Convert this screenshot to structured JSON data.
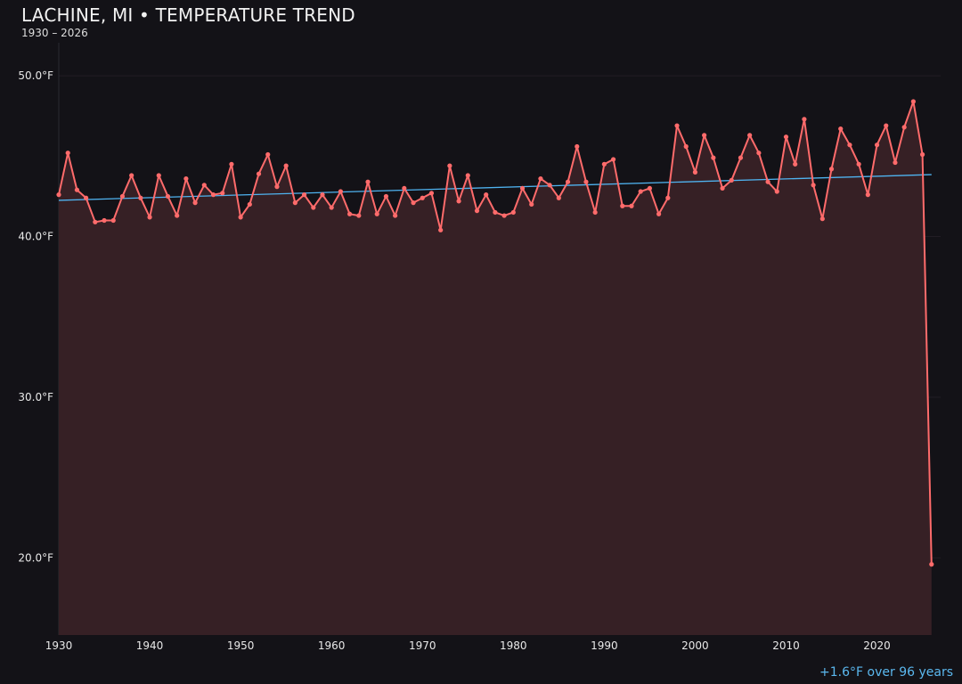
{
  "chart_data": {
    "type": "line",
    "title": "LACHINE, MI • TEMPERATURE TREND",
    "subtitle": "1930 – 2026",
    "annotation": "+1.6°F over 96 years",
    "xlabel": "",
    "ylabel": "",
    "xlim": [
      1930,
      2027
    ],
    "ylim": [
      15.2,
      52.5
    ],
    "grid": true,
    "x_ticks": [
      1930,
      1940,
      1950,
      1960,
      1970,
      1980,
      1990,
      2000,
      2010,
      2020
    ],
    "x_tick_labels": [
      "1930",
      "1940",
      "1950",
      "1960",
      "1970",
      "1980",
      "1990",
      "2000",
      "2010",
      "2020"
    ],
    "y_ticks": [
      20,
      30,
      40,
      50
    ],
    "y_tick_labels": [
      "20.0°F",
      "30.0°F",
      "40.0°F",
      "50.0°F"
    ],
    "x_start": 1930,
    "values": [
      42.6,
      45.2,
      42.9,
      42.4,
      40.9,
      41.0,
      41.0,
      42.5,
      43.8,
      42.4,
      41.2,
      43.8,
      42.5,
      41.3,
      43.6,
      42.1,
      43.2,
      42.6,
      42.7,
      44.5,
      41.2,
      42.0,
      43.9,
      45.1,
      43.1,
      44.4,
      42.1,
      42.6,
      41.8,
      42.6,
      41.8,
      42.8,
      41.4,
      41.3,
      43.4,
      41.4,
      42.5,
      41.3,
      43.0,
      42.1,
      42.4,
      42.7,
      40.4,
      44.4,
      42.2,
      43.8,
      41.6,
      42.6,
      41.5,
      41.3,
      41.5,
      43.0,
      42.0,
      43.6,
      43.2,
      42.4,
      43.4,
      45.6,
      43.4,
      41.5,
      44.5,
      44.8,
      41.9,
      41.9,
      42.8,
      43.0,
      41.4,
      42.4,
      46.9,
      45.6,
      44.0,
      46.3,
      44.9,
      43.0,
      43.5,
      44.9,
      46.3,
      45.2,
      43.4,
      42.8,
      46.2,
      44.5,
      47.3,
      43.2,
      41.1,
      44.2,
      46.7,
      45.7,
      44.5,
      42.6,
      45.7,
      46.9,
      44.6,
      46.8,
      48.4,
      45.1,
      19.6
    ],
    "trend": {
      "x": [
        1930,
        2026
      ],
      "y": [
        42.25,
        43.85
      ]
    },
    "colors": {
      "line": "#ff6b6b",
      "fill": "#362025",
      "trend": "#4fb3f0",
      "background": "#131217",
      "annotation": "#5bb8ef"
    }
  }
}
